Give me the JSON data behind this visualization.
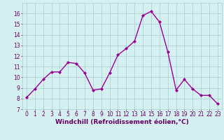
{
  "x": [
    0,
    1,
    2,
    3,
    4,
    5,
    6,
    7,
    8,
    9,
    10,
    11,
    12,
    13,
    14,
    15,
    16,
    17,
    18,
    19,
    20,
    21,
    22,
    23
  ],
  "y": [
    8.1,
    8.9,
    9.8,
    10.5,
    10.5,
    11.4,
    11.3,
    10.4,
    8.8,
    8.9,
    10.4,
    12.1,
    12.7,
    13.4,
    15.8,
    16.2,
    15.2,
    12.4,
    8.8,
    9.8,
    8.9,
    8.3,
    8.3,
    7.5
  ],
  "line_color": "#990099",
  "marker": "D",
  "markersize": 2,
  "linewidth": 1.0,
  "bg_color": "#d5f0f0",
  "grid_color": "#aacccc",
  "xlabel": "Windchill (Refroidissement éolien,°C)",
  "xlim": [
    -0.5,
    23.5
  ],
  "ylim": [
    7,
    17
  ],
  "yticks": [
    7,
    8,
    9,
    10,
    11,
    12,
    13,
    14,
    15,
    16
  ],
  "xticks": [
    0,
    1,
    2,
    3,
    4,
    5,
    6,
    7,
    8,
    9,
    10,
    11,
    12,
    13,
    14,
    15,
    16,
    17,
    18,
    19,
    20,
    21,
    22,
    23
  ],
  "tick_fontsize": 5.5,
  "xlabel_fontsize": 6.5,
  "axis_label_color": "#660066"
}
